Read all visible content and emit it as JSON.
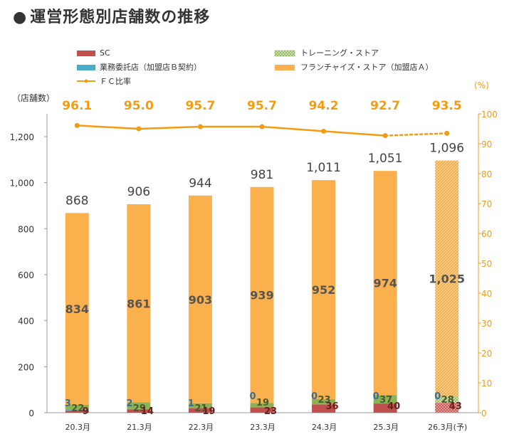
{
  "page_title": "運営形態別店舗数の推移",
  "chart_data": {
    "type": "bar",
    "title": "運営形態別店舗数の推移",
    "ylabel_left": "（店舗数）",
    "ylabel_right": "(%)",
    "ylim_left": [
      0,
      1300
    ],
    "ylim_right": [
      0,
      100
    ],
    "yticks_left": [
      "0",
      "200",
      "400",
      "600",
      "800",
      "1,000",
      "1,200"
    ],
    "yticks_right": [
      "0",
      "10",
      "20",
      "30",
      "40",
      "50",
      "60",
      "70",
      "80",
      "90",
      "100"
    ],
    "categories": [
      "20.3月",
      "21.3月",
      "22.3月",
      "23.3月",
      "24.3月",
      "25.3月",
      "26.3月(予)"
    ],
    "forecast_index": 6,
    "legend": {
      "sc": "SC",
      "training": "トレーニング・ストア",
      "gyomu": "業務委託店（加盟店Ｂ契約）",
      "fc": "フランチャイズ・ストア（加盟店Ａ）",
      "ratio": "ＦＣ比率"
    },
    "series": [
      {
        "key": "sc",
        "name": "SC",
        "color": "#C0504D",
        "values": [
          9,
          14,
          19,
          23,
          36,
          40,
          43
        ]
      },
      {
        "key": "training",
        "name": "トレーニング・ストア",
        "color": "#8DB255",
        "values": [
          22,
          29,
          21,
          19,
          23,
          37,
          28
        ]
      },
      {
        "key": "gyomu",
        "name": "業務委託店（加盟店Ｂ契約）",
        "color": "#4BACC6",
        "values": [
          3,
          2,
          1,
          0,
          0,
          0,
          0
        ]
      },
      {
        "key": "fc",
        "name": "フランチャイズ・ストア（加盟店Ａ）",
        "color": "#FBB04E",
        "values": [
          834,
          861,
          903,
          939,
          952,
          974,
          1025
        ]
      }
    ],
    "totals": [
      "868",
      "906",
      "944",
      "981",
      "1,011",
      "1,051",
      "1,096"
    ],
    "value_labels": {
      "sc": [
        "9",
        "14",
        "19",
        "23",
        "36",
        "40",
        "43"
      ],
      "training": [
        "22",
        "29",
        "21",
        "19",
        "23",
        "37",
        "28"
      ],
      "gyomu": [
        "3",
        "2",
        "1",
        "0",
        "0",
        "0",
        "0"
      ],
      "fc": [
        "834",
        "861",
        "903",
        "939",
        "952",
        "974",
        "1,025"
      ]
    },
    "fc_ratio": {
      "name": "ＦＣ比率",
      "color": "#F39C12",
      "values": [
        96.1,
        95.0,
        95.7,
        95.7,
        94.2,
        92.7,
        93.5
      ],
      "labels": [
        "96.1",
        "95.0",
        "95.7",
        "95.7",
        "94.2",
        "92.7",
        "93.5"
      ]
    }
  }
}
